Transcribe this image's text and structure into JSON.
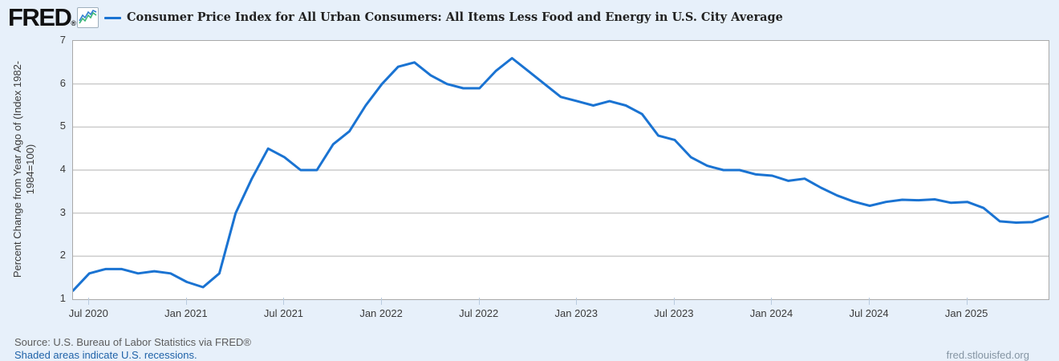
{
  "header": {
    "logo_text": "FRED",
    "logo_registered": "®",
    "legend": {
      "series_label": "Consumer Price Index for All Urban Consumers: All Items Less Food and Energy in U.S. City Average",
      "line_color": "#1a73d2"
    }
  },
  "chart_data": {
    "type": "line",
    "title": "Consumer Price Index for All Urban Consumers: All Items Less Food and Energy in U.S. City Average",
    "xlabel": "",
    "ylabel_line1": "Percent Change from Year Ago of (Index 1982-",
    "ylabel_line2": "1984=100)",
    "ylim": [
      1,
      7
    ],
    "yticks": [
      1,
      2,
      3,
      4,
      5,
      6,
      7
    ],
    "grid_values": [
      2,
      3,
      4,
      5,
      6
    ],
    "grid": "horizontal",
    "legend_position": "top",
    "line_color": "#1a73d2",
    "x": [
      "2020-06",
      "2020-07",
      "2020-08",
      "2020-09",
      "2020-10",
      "2020-11",
      "2020-12",
      "2021-01",
      "2021-02",
      "2021-03",
      "2021-04",
      "2021-05",
      "2021-06",
      "2021-07",
      "2021-08",
      "2021-09",
      "2021-10",
      "2021-11",
      "2021-12",
      "2022-01",
      "2022-02",
      "2022-03",
      "2022-04",
      "2022-05",
      "2022-06",
      "2022-07",
      "2022-08",
      "2022-09",
      "2022-10",
      "2022-11",
      "2022-12",
      "2023-01",
      "2023-02",
      "2023-03",
      "2023-04",
      "2023-05",
      "2023-06",
      "2023-07",
      "2023-08",
      "2023-09",
      "2023-10",
      "2023-11",
      "2023-12",
      "2024-01",
      "2024-02",
      "2024-03",
      "2024-04",
      "2024-05",
      "2024-06",
      "2024-07",
      "2024-08",
      "2024-09",
      "2024-10",
      "2024-11",
      "2024-12",
      "2025-01",
      "2025-02",
      "2025-03",
      "2025-04",
      "2025-05",
      "2025-06"
    ],
    "values": [
      1.2,
      1.6,
      1.7,
      1.7,
      1.6,
      1.65,
      1.6,
      1.4,
      1.28,
      1.6,
      3.0,
      3.8,
      4.5,
      4.3,
      4.0,
      4.0,
      4.6,
      4.9,
      5.5,
      6.0,
      6.4,
      6.5,
      6.2,
      6.0,
      5.9,
      5.9,
      6.3,
      6.6,
      6.3,
      6.0,
      5.7,
      5.6,
      5.5,
      5.6,
      5.5,
      5.3,
      4.8,
      4.7,
      4.3,
      4.1,
      4.0,
      4.0,
      3.9,
      3.87,
      3.75,
      3.8,
      3.59,
      3.41,
      3.27,
      3.17,
      3.26,
      3.31,
      3.3,
      3.32,
      3.24,
      3.26,
      3.12,
      2.81,
      2.78,
      2.79,
      2.93
    ],
    "x_ticks": [
      {
        "label": "Jul 2020",
        "month_index": 1
      },
      {
        "label": "Jan 2021",
        "month_index": 7
      },
      {
        "label": "Jul 2021",
        "month_index": 13
      },
      {
        "label": "Jan 2022",
        "month_index": 19
      },
      {
        "label": "Jul 2022",
        "month_index": 25
      },
      {
        "label": "Jan 2023",
        "month_index": 31
      },
      {
        "label": "Jul 2023",
        "month_index": 37
      },
      {
        "label": "Jan 2024",
        "month_index": 43
      },
      {
        "label": "Jul 2024",
        "month_index": 49
      },
      {
        "label": "Jan 2025",
        "month_index": 55
      }
    ]
  },
  "footer": {
    "source_text": "Source: U.S. Bureau of Labor Statistics via FRED®",
    "recession_note": "Shaded areas indicate U.S. recessions.",
    "site_url": "fred.stlouisfed.org"
  },
  "colors": {
    "page_background": "#e7f0fa",
    "plot_background": "#ffffff",
    "gridline": "#cccccc",
    "plot_border": "#a9a9a9",
    "line": "#1a73d2",
    "link": "#1f62a8"
  }
}
